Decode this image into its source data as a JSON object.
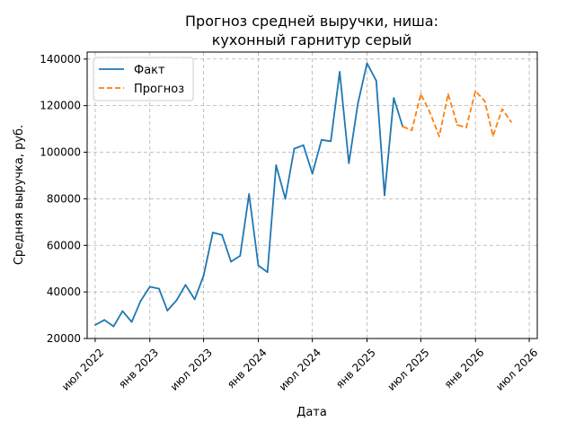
{
  "chart_data": {
    "type": "line",
    "title_lines": [
      "Прогноз средней выручки, ниша:",
      "кухонный гарнитур серый"
    ],
    "xlabel": "Дата",
    "ylabel": "Средняя выручка, руб.",
    "x_axis": {
      "type": "date",
      "range": [
        "2022-06-04",
        "2026-07-28"
      ],
      "ticks": [
        {
          "date": "2022-07-01",
          "label": "июл 2022"
        },
        {
          "date": "2023-01-01",
          "label": "янв 2023"
        },
        {
          "date": "2023-07-01",
          "label": "июл 2023"
        },
        {
          "date": "2024-01-01",
          "label": "янв 2024"
        },
        {
          "date": "2024-07-01",
          "label": "июл 2024"
        },
        {
          "date": "2025-01-01",
          "label": "янв 2025"
        },
        {
          "date": "2025-07-01",
          "label": "июл 2025"
        },
        {
          "date": "2026-01-01",
          "label": "янв 2026"
        },
        {
          "date": "2026-07-01",
          "label": "июл 2026"
        }
      ]
    },
    "y_axis": {
      "range": [
        20000,
        143000
      ],
      "ticks": [
        20000,
        40000,
        60000,
        80000,
        100000,
        120000,
        140000
      ]
    },
    "grid": true,
    "legend_position": "top-left",
    "series": [
      {
        "name": "Факт",
        "style": "solid",
        "color": "#1f77b4",
        "points": [
          [
            "2022-07-01",
            25800
          ],
          [
            "2022-08-01",
            28000
          ],
          [
            "2022-09-01",
            25200
          ],
          [
            "2022-10-01",
            31800
          ],
          [
            "2022-11-01",
            27100
          ],
          [
            "2022-12-01",
            36100
          ],
          [
            "2023-01-01",
            42200
          ],
          [
            "2023-02-01",
            41400
          ],
          [
            "2023-03-01",
            32000
          ],
          [
            "2023-04-01",
            36400
          ],
          [
            "2023-05-01",
            43000
          ],
          [
            "2023-06-01",
            36800
          ],
          [
            "2023-07-01",
            47000
          ],
          [
            "2023-08-01",
            65500
          ],
          [
            "2023-09-01",
            64500
          ],
          [
            "2023-10-01",
            53000
          ],
          [
            "2023-11-01",
            55500
          ],
          [
            "2023-12-01",
            82000
          ],
          [
            "2024-01-01",
            51400
          ],
          [
            "2024-02-01",
            48500
          ],
          [
            "2024-03-01",
            94400
          ],
          [
            "2024-04-01",
            80000
          ],
          [
            "2024-05-01",
            101500
          ],
          [
            "2024-06-01",
            103000
          ],
          [
            "2024-07-01",
            90800
          ],
          [
            "2024-08-01",
            105300
          ],
          [
            "2024-09-01",
            104700
          ],
          [
            "2024-10-01",
            134500
          ],
          [
            "2024-11-01",
            95300
          ],
          [
            "2024-12-01",
            120800
          ],
          [
            "2025-01-01",
            138200
          ],
          [
            "2025-02-01",
            130700
          ],
          [
            "2025-03-01",
            81500
          ],
          [
            "2025-04-01",
            123300
          ],
          [
            "2025-05-01",
            111000
          ]
        ]
      },
      {
        "name": "Прогноз",
        "style": "dashed",
        "color": "#ff7f0e",
        "points": [
          [
            "2025-05-01",
            111000
          ],
          [
            "2025-06-01",
            109400
          ],
          [
            "2025-07-01",
            125000
          ],
          [
            "2025-08-01",
            117000
          ],
          [
            "2025-09-01",
            106800
          ],
          [
            "2025-10-01",
            125000
          ],
          [
            "2025-11-01",
            111700
          ],
          [
            "2025-12-01",
            110600
          ],
          [
            "2026-01-01",
            126300
          ],
          [
            "2026-02-01",
            122000
          ],
          [
            "2026-03-01",
            107000
          ],
          [
            "2026-04-01",
            118500
          ],
          [
            "2026-05-01",
            113000
          ]
        ]
      }
    ]
  },
  "colors": {
    "grid": "#b0b0b0",
    "axes": "#000000",
    "legend_border": "#cccccc"
  }
}
